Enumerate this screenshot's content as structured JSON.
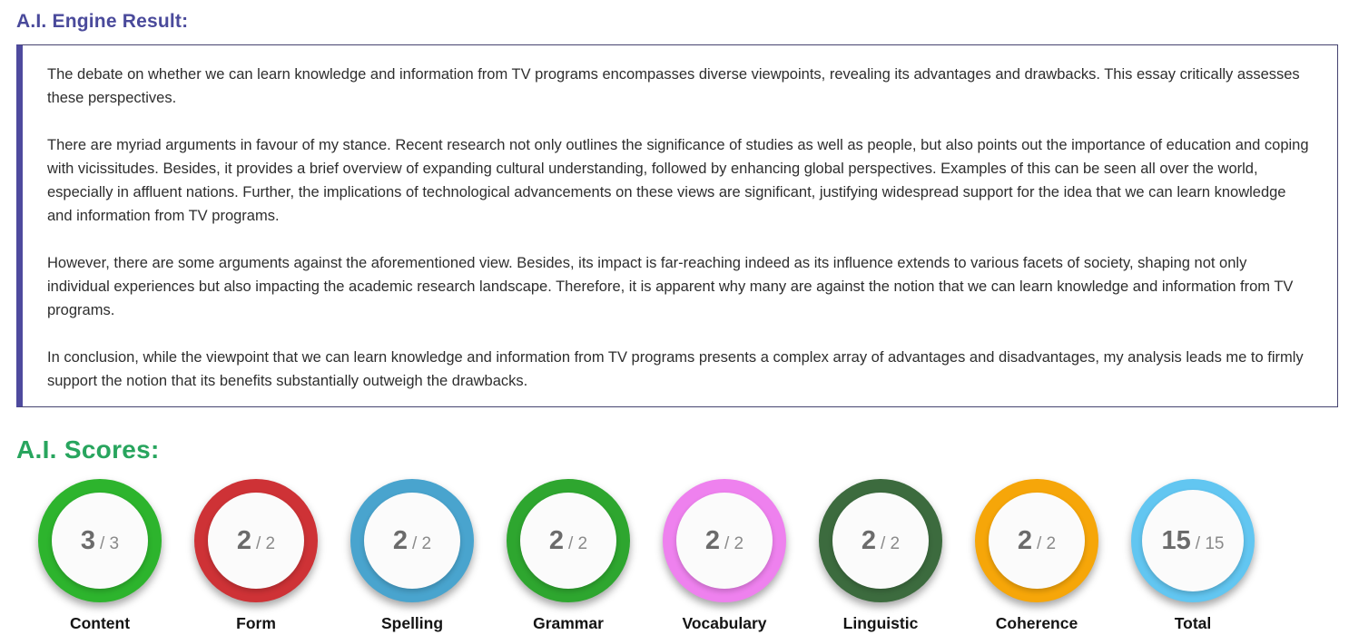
{
  "engine_result": {
    "title": "A.I. Engine Result:",
    "paragraphs": [
      "The debate on whether we can learn knowledge and information from TV programs encompasses diverse viewpoints, revealing its advantages and drawbacks. This essay critically assesses these perspectives.",
      "There are myriad arguments in favour of my stance. Recent research not only outlines the significance of studies as well as people, but also points out the importance of education and coping with vicissitudes. Besides, it provides a brief overview of expanding cultural understanding, followed by enhancing global perspectives. Examples of this can be seen all over the world, especially in affluent nations. Further, the implications of technological advancements on these views are significant, justifying widespread support for the idea that we can learn knowledge and information from TV programs.",
      "However, there are some arguments against the aforementioned view. Besides, its impact is far-reaching indeed as its influence extends to various facets of society, shaping not only individual experiences but also impacting the academic research landscape. Therefore, it is apparent why many are against the notion that we can learn knowledge and information from TV programs.",
      "In conclusion, while the viewpoint that we can learn knowledge and information from TV programs presents a complex array of advantages and disadvantages, my analysis leads me to firmly support the notion that its benefits substantially outweigh the drawbacks."
    ]
  },
  "scores": {
    "title": "A.I. Scores:",
    "separator": "/",
    "items": [
      {
        "label": "Content",
        "score": "3",
        "max": "3",
        "ring_color": "#2db42d"
      },
      {
        "label": "Form",
        "score": "2",
        "max": "2",
        "ring_color": "#ce3236"
      },
      {
        "label": "Spelling",
        "score": "2",
        "max": "2",
        "ring_color": "#49a4ce"
      },
      {
        "label": "Grammar",
        "score": "2",
        "max": "2",
        "ring_color": "#2ea62f"
      },
      {
        "label": "Vocabulary",
        "score": "2",
        "max": "2",
        "ring_color": "#ee81ee"
      },
      {
        "label": "Linguistic",
        "score": "2",
        "max": "2",
        "ring_color": "#3c6b3e"
      },
      {
        "label": "Coherence",
        "score": "2",
        "max": "2",
        "ring_color": "#f6a609"
      },
      {
        "label": "Total",
        "score": "15",
        "max": "15",
        "ring_color": "#62c6f1",
        "thin": true
      }
    ]
  },
  "colors": {
    "engine_title": "#4a4a9b",
    "scores_title": "#28a55e",
    "box_accent": "#4e4a9e",
    "box_border": "#454370",
    "score_number": "#6b6b6b",
    "score_max": "#8a8a8a",
    "label_text": "#141414"
  }
}
